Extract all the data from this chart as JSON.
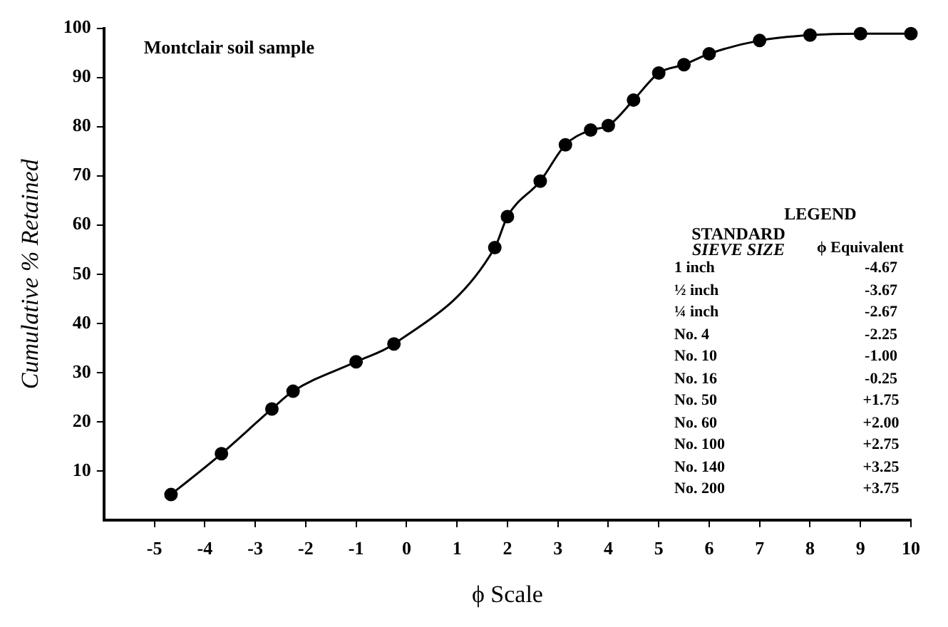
{
  "chart_data": {
    "type": "line",
    "title": "Montclair soil sample",
    "xlabel": "ϕ Scale",
    "ylabel": "Cumulative % Retained",
    "x": [
      -4.67,
      -3.67,
      -2.67,
      -2.25,
      -1.0,
      -0.25,
      1.75,
      2.0,
      2.65,
      3.15,
      3.65,
      4.0,
      4.5,
      5.0,
      5.5,
      6.0,
      7.0,
      8.0,
      9.0,
      10.0
    ],
    "series": [
      {
        "color": "#000000",
        "values": [
          5.2,
          13.5,
          22.6,
          26.2,
          32.2,
          35.8,
          55.4,
          61.7,
          68.9,
          76.3,
          79.3,
          80.2,
          85.4,
          90.9,
          92.6,
          94.8,
          97.5,
          98.6,
          98.9,
          98.9
        ]
      }
    ],
    "xlim": [
      -6,
      10
    ],
    "xticks": [
      -5,
      -4,
      -3,
      -2,
      -1,
      0,
      1,
      2,
      3,
      4,
      5,
      6,
      7,
      8,
      9,
      10
    ],
    "ylim": [
      0,
      100
    ],
    "yticks": [
      10,
      20,
      30,
      40,
      50,
      60,
      70,
      80,
      90,
      100
    ],
    "grid": false,
    "marker": "circle",
    "line_style": "solid",
    "annotations": [
      "LEGEND",
      "STANDARD",
      "SIEVE SIZE",
      "ϕ Equivalent",
      "1 inch",
      "-4.67",
      "½ inch",
      "-3.67",
      "¼ inch",
      "-2.67",
      "No. 4",
      "-2.25",
      "No. 10",
      "-1.00",
      "No. 16",
      "-0.25",
      "No. 50",
      "+1.75",
      "No. 60",
      "+2.00",
      "No. 100",
      "+2.75",
      "No. 140",
      "+3.25",
      "No. 200",
      "+3.75"
    ]
  }
}
